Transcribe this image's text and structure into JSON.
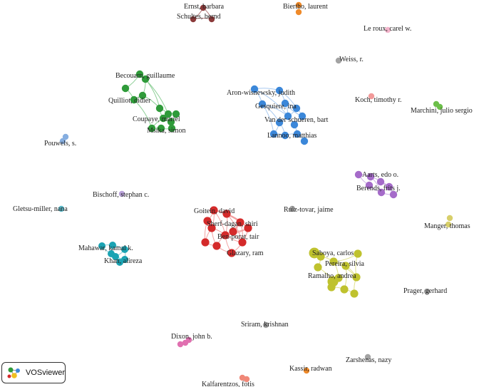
{
  "app": {
    "name": "VOSviewer"
  },
  "clusters": [
    {
      "id": "red",
      "color": "#d42a2a",
      "nodes": [
        "Goitein, david",
        "Sherf-dagan, shiri",
        "Ben-porat, tair",
        "Glazary, ram"
      ]
    },
    {
      "id": "green",
      "color": "#2f9b3a",
      "nodes": [
        "Becouarn, guillaume",
        "Quilliot, didier",
        "Coupaye, muriel",
        "Msika, simon"
      ]
    },
    {
      "id": "blue",
      "color": "#3b87d9",
      "nodes": [
        "Aron-wisnewsky, judith",
        "Gesquiere, ina",
        "Van der schueren, bart",
        "Lannoo, matthias"
      ]
    },
    {
      "id": "olive",
      "color": "#bfc22e",
      "nodes": [
        "Saboya, carlos",
        "Pereira, silvia",
        "Ramalho, andrea"
      ]
    },
    {
      "id": "purple",
      "color": "#a56bc9",
      "nodes": [
        "Aarts, edo o.",
        "Berends, frits j."
      ]
    },
    {
      "id": "teal",
      "color": "#1aa3b3",
      "nodes": [
        "Mahawar, kamal k.",
        "Khan, alireza"
      ]
    },
    {
      "id": "brown",
      "color": "#8b3a3a",
      "nodes": [
        "Ernst, barbara",
        "Schultes, bernd"
      ]
    },
    {
      "id": "pink",
      "color": "#e070b0",
      "nodes": [
        "Dixon, john b."
      ]
    },
    {
      "id": "salmon",
      "color": "#f08878",
      "nodes": [
        "Kalfarentzos, fotis"
      ]
    },
    {
      "id": "orange",
      "color": "#ef8a2a",
      "nodes": [
        "Biertho, laurent",
        "Kassir, radwan"
      ]
    },
    {
      "id": "lightgreen",
      "color": "#6cbf4a",
      "nodes": [
        "Marchini, julio sergio"
      ]
    },
    {
      "id": "lightred",
      "color": "#f29a9a",
      "nodes": [
        "Koch, timothy r."
      ]
    },
    {
      "id": "skyblue",
      "color": "#86aee0",
      "nodes": [
        "Pouwels, s."
      ]
    },
    {
      "id": "lavender",
      "color": "#b9a2d9",
      "nodes": [
        "Bischoff, stephan c."
      ]
    },
    {
      "id": "cyan",
      "color": "#5ab8c8",
      "nodes": [
        "Gletsu-miller, nana"
      ]
    },
    {
      "id": "khaki",
      "color": "#d8cf6a",
      "nodes": [
        "Manger, thomas"
      ]
    },
    {
      "id": "rose",
      "color": "#f4b5cc",
      "nodes": [
        "Le roux, carel w."
      ]
    },
    {
      "id": "gray",
      "color": "#a3a3a3",
      "nodes": [
        "Weiss, r.",
        "Ruiz-tovar, jaime",
        "Prager, gerhard",
        "Sriram, krishnan",
        "Zarshenas, nazy"
      ]
    }
  ]
}
